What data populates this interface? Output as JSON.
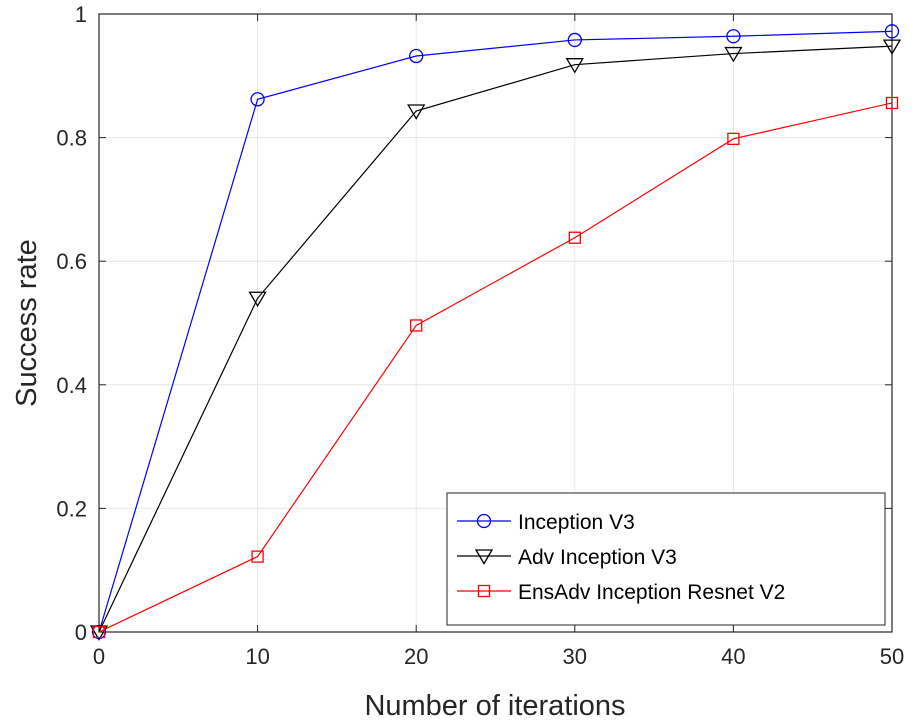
{
  "chart_data": {
    "type": "line",
    "xlabel": "Number of iterations",
    "ylabel": "Success rate",
    "x": [
      0,
      10,
      20,
      30,
      40,
      50
    ],
    "xlim": [
      0,
      50
    ],
    "ylim": [
      0,
      1
    ],
    "xticks": [
      "0",
      "10",
      "20",
      "30",
      "40",
      "50"
    ],
    "yticks": [
      "0",
      "0.2",
      "0.4",
      "0.6",
      "0.8",
      "1"
    ],
    "grid": true,
    "legend_position": "bottom-right",
    "series": [
      {
        "name": "Inception V3",
        "color": "#0000ff",
        "marker": "circle",
        "values": [
          0,
          0.862,
          0.932,
          0.958,
          0.964,
          0.972
        ]
      },
      {
        "name": "Adv Inception V3",
        "color": "#000000",
        "marker": "triangle-down",
        "values": [
          0,
          0.54,
          0.843,
          0.918,
          0.936,
          0.948
        ]
      },
      {
        "name": "EnsAdv Inception Resnet V2",
        "color": "#ff0000",
        "marker": "square",
        "values": [
          0,
          0.122,
          0.496,
          0.638,
          0.798,
          0.856
        ]
      }
    ]
  }
}
